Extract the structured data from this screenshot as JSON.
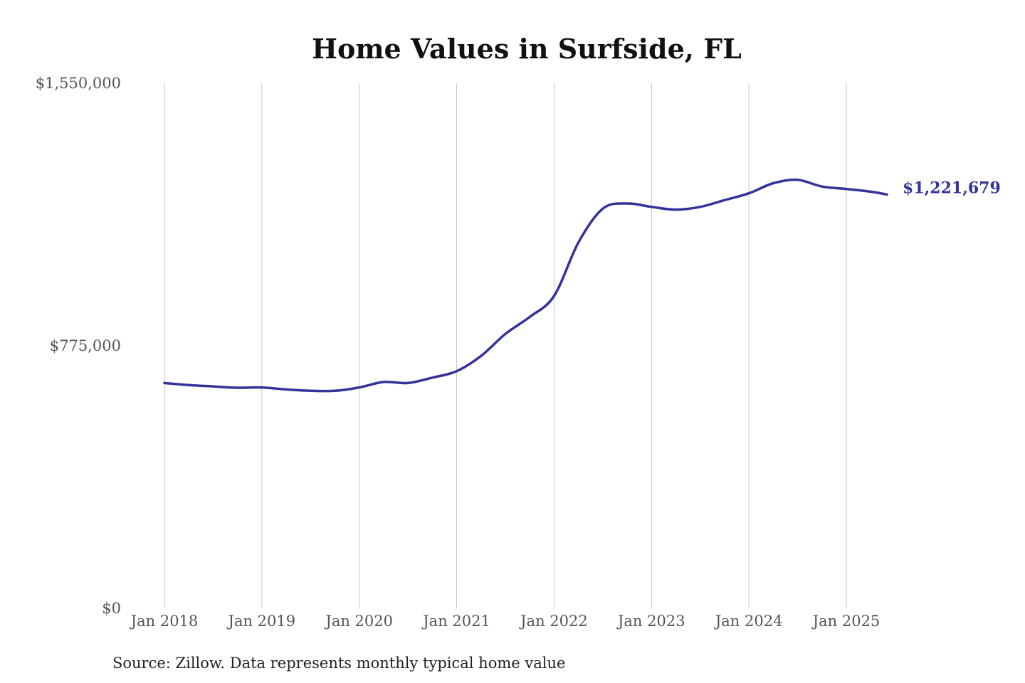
{
  "chart_data": {
    "type": "line",
    "title": "Home Values in Surfside, FL",
    "source": "Source: Zillow. Data represents monthly typical home value",
    "ylim": [
      0,
      1550000
    ],
    "y_ticks": [
      {
        "value": 0,
        "label": "$0"
      },
      {
        "value": 775000,
        "label": "$775,000"
      },
      {
        "value": 1550000,
        "label": "$1,550,000"
      }
    ],
    "x_ticks": [
      {
        "value": "2018-01",
        "label": "Jan 2018"
      },
      {
        "value": "2019-01",
        "label": "Jan 2019"
      },
      {
        "value": "2020-01",
        "label": "Jan 2020"
      },
      {
        "value": "2021-01",
        "label": "Jan 2021"
      },
      {
        "value": "2022-01",
        "label": "Jan 2022"
      },
      {
        "value": "2023-01",
        "label": "Jan 2023"
      },
      {
        "value": "2024-01",
        "label": "Jan 2024"
      },
      {
        "value": "2025-01",
        "label": "Jan 2025"
      }
    ],
    "grid": {
      "vertical": true,
      "horizontal": false
    },
    "line_color": "#35329a",
    "end_label": "$1,221,679",
    "series": [
      {
        "x": [
          "2018-01",
          "2018-04",
          "2018-07",
          "2018-10",
          "2019-01",
          "2019-04",
          "2019-07",
          "2019-10",
          "2020-01",
          "2020-04",
          "2020-07",
          "2020-10",
          "2021-01",
          "2021-04",
          "2021-07",
          "2021-10",
          "2022-01",
          "2022-04",
          "2022-07",
          "2022-10",
          "2023-01",
          "2023-04",
          "2023-07",
          "2023-10",
          "2024-01",
          "2024-04",
          "2024-07",
          "2024-10",
          "2025-01",
          "2025-04",
          "2025-06"
        ],
        "y": [
          665000,
          659000,
          655000,
          651000,
          652000,
          646000,
          642000,
          642000,
          652000,
          668000,
          665000,
          681000,
          700000,
          745000,
          810000,
          860000,
          922000,
          1080000,
          1180000,
          1195000,
          1185000,
          1177000,
          1185000,
          1205000,
          1225000,
          1255000,
          1265000,
          1245000,
          1238000,
          1230000,
          1221679
        ]
      }
    ]
  }
}
